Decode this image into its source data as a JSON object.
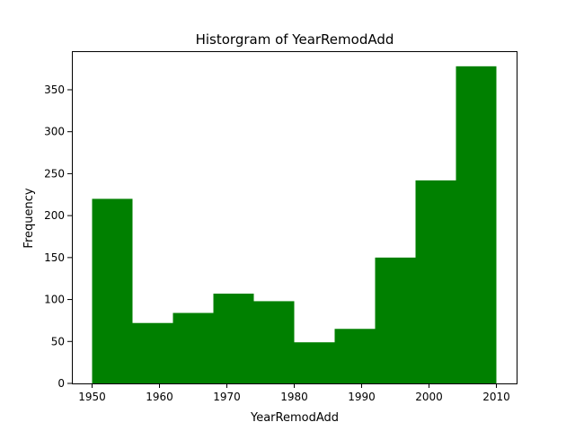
{
  "chart_data": {
    "type": "bar",
    "title": "Historgram of YearRemodAdd",
    "xlabel": "YearRemodAdd",
    "ylabel": "Frequency",
    "bar_color": "#008000",
    "bins": [
      {
        "start": 1950,
        "end": 1956,
        "value": 220
      },
      {
        "start": 1956,
        "end": 1962,
        "value": 72
      },
      {
        "start": 1962,
        "end": 1968,
        "value": 84
      },
      {
        "start": 1968,
        "end": 1974,
        "value": 107
      },
      {
        "start": 1974,
        "end": 1980,
        "value": 98
      },
      {
        "start": 1980,
        "end": 1986,
        "value": 49
      },
      {
        "start": 1986,
        "end": 1992,
        "value": 65
      },
      {
        "start": 1992,
        "end": 1998,
        "value": 150
      },
      {
        "start": 1998,
        "end": 2004,
        "value": 242
      },
      {
        "start": 2004,
        "end": 2010,
        "value": 378
      }
    ],
    "xlim": [
      1947,
      2013
    ],
    "ylim": [
      0,
      396
    ],
    "xticks": [
      1950,
      1960,
      1970,
      1980,
      1990,
      2000,
      2010
    ],
    "yticks": [
      0,
      50,
      100,
      150,
      200,
      250,
      300,
      350
    ],
    "grid": false,
    "legend": "none"
  }
}
